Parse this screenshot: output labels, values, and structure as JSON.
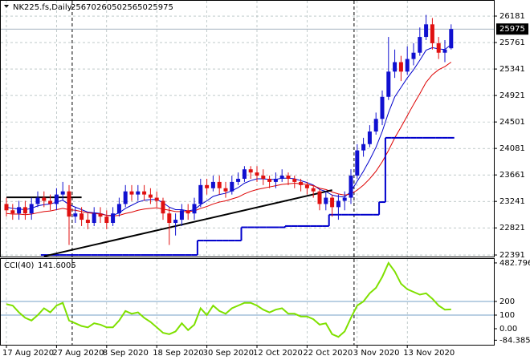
{
  "chart_data": [
    {
      "type": "candlestick",
      "symbol": "NK225.fs,Daily",
      "categories": [
        "17 Aug 2020",
        null,
        null,
        null,
        null,
        null,
        null,
        null,
        "27 Aug 2020",
        null,
        null,
        null,
        null,
        null,
        null,
        null,
        "8 Sep 2020",
        null,
        null,
        null,
        null,
        null,
        null,
        null,
        "18 Sep 2020",
        null,
        null,
        null,
        null,
        null,
        null,
        null,
        "30 Sep 2020",
        null,
        null,
        null,
        null,
        null,
        null,
        null,
        "12 Oct 2020",
        null,
        null,
        null,
        null,
        null,
        null,
        null,
        "22 Oct 2020",
        null,
        null,
        null,
        null,
        null,
        null,
        null,
        "3 Nov 2020",
        null,
        null,
        null,
        null,
        null,
        null,
        null,
        "13 Nov 2020",
        null,
        null,
        null,
        null,
        null,
        null,
        null
      ],
      "open": [
        23200,
        23100,
        23050,
        23150,
        23050,
        23200,
        23300,
        23250,
        23200,
        23350,
        23400,
        23000,
        23050,
        22950,
        22900,
        23050,
        23000,
        22900,
        23050,
        23200,
        23400,
        23350,
        23400,
        23350,
        23300,
        23250,
        23050,
        22900,
        22950,
        23100,
        23050,
        23200,
        23500,
        23450,
        23550,
        23450,
        23400,
        23550,
        23600,
        23750,
        23700,
        23650,
        23600,
        23550,
        23600,
        23650,
        23600,
        23550,
        23500,
        23450,
        23400,
        23200,
        23300,
        23150,
        23250,
        23300,
        23650,
        24050,
        24150,
        24350,
        24550,
        24900,
        25300,
        25450,
        25300,
        25500,
        25600,
        25850,
        26050,
        25750,
        25600,
        25670
      ],
      "high": [
        23300,
        23200,
        23250,
        23250,
        23300,
        23400,
        23400,
        23350,
        23450,
        23550,
        23500,
        23150,
        23150,
        23050,
        23150,
        23150,
        23100,
        23150,
        23300,
        23500,
        23500,
        23500,
        23500,
        23450,
        23400,
        23300,
        23150,
        23050,
        23200,
        23200,
        23300,
        23600,
        23600,
        23650,
        23650,
        23550,
        23650,
        23700,
        23800,
        23800,
        23800,
        23750,
        23650,
        23700,
        23750,
        23700,
        23650,
        23600,
        23550,
        23500,
        23450,
        23400,
        23350,
        23350,
        23400,
        23750,
        24150,
        24250,
        24450,
        24650,
        25000,
        25850,
        25650,
        25550,
        25700,
        25750,
        26000,
        26200,
        26150,
        25850,
        25800,
        26050
      ],
      "low": [
        23000,
        22950,
        22950,
        22950,
        22950,
        23150,
        23150,
        23100,
        23100,
        23250,
        22550,
        22900,
        22850,
        22800,
        22850,
        22900,
        22800,
        22850,
        23000,
        23150,
        23250,
        23250,
        23250,
        23200,
        23150,
        22950,
        22550,
        22700,
        22850,
        22950,
        22950,
        23150,
        23350,
        23400,
        23350,
        23300,
        23350,
        23500,
        23550,
        23600,
        23550,
        23500,
        23450,
        23450,
        23550,
        23500,
        23450,
        23400,
        23350,
        23300,
        23100,
        23100,
        23000,
        22950,
        23100,
        23200,
        23600,
        23950,
        24100,
        24300,
        24450,
        24850,
        25200,
        25150,
        25250,
        25400,
        25550,
        25800,
        25650,
        25500,
        25450,
        25650
      ],
      "close": [
        23100,
        23050,
        23150,
        23050,
        23200,
        23300,
        23250,
        23200,
        23350,
        23400,
        23000,
        23050,
        22950,
        22900,
        23050,
        23000,
        22900,
        23050,
        23200,
        23400,
        23350,
        23400,
        23350,
        23300,
        23250,
        23050,
        22900,
        22950,
        23100,
        23050,
        23200,
        23500,
        23450,
        23550,
        23450,
        23400,
        23550,
        23600,
        23750,
        23700,
        23650,
        23600,
        23550,
        23600,
        23650,
        23600,
        23550,
        23500,
        23450,
        23400,
        23200,
        23300,
        23150,
        23250,
        23300,
        23650,
        24050,
        24150,
        24350,
        24550,
        24900,
        25300,
        25450,
        25300,
        25500,
        25600,
        25850,
        26050,
        25750,
        25600,
        25650,
        25975
      ],
      "up_color": "#1010d0",
      "down_color": "#e01010",
      "series": [
        {
          "color": "#0000cc",
          "values": [
            23150,
            23130,
            23120,
            23110,
            23130,
            23170,
            23190,
            23200,
            23230,
            23260,
            23190,
            23150,
            23110,
            23070,
            23060,
            23050,
            23020,
            23020,
            23060,
            23130,
            23180,
            23230,
            23260,
            23270,
            23270,
            23220,
            23150,
            23110,
            23110,
            23090,
            23110,
            23190,
            23250,
            23320,
            23350,
            23370,
            23410,
            23460,
            23530,
            23570,
            23600,
            23600,
            23590,
            23590,
            23610,
            23610,
            23600,
            23570,
            23540,
            23500,
            23430,
            23400,
            23340,
            23320,
            23310,
            23400,
            23560,
            23720,
            23900,
            24100,
            24350,
            24650,
            24900,
            25050,
            25200,
            25330,
            25480,
            25640,
            25680,
            25660,
            25650,
            25730
          ]
        },
        {
          "color": "#dd0000",
          "values": [
            23050,
            23040,
            23040,
            23030,
            23040,
            23060,
            23080,
            23090,
            23110,
            23130,
            23110,
            23100,
            23080,
            23060,
            23050,
            23040,
            23020,
            23010,
            23020,
            23050,
            23070,
            23100,
            23120,
            23130,
            23140,
            23120,
            23100,
            23080,
            23080,
            23080,
            23090,
            23130,
            23160,
            23200,
            23230,
            23250,
            23280,
            23310,
            23360,
            23400,
            23430,
            23450,
            23470,
            23490,
            23510,
            23520,
            23530,
            23520,
            23510,
            23490,
            23450,
            23430,
            23390,
            23360,
            23340,
            23360,
            23420,
            23500,
            23600,
            23720,
            23870,
            24050,
            24250,
            24420,
            24600,
            24780,
            24950,
            25130,
            25250,
            25330,
            25380,
            25450
          ]
        },
        {
          "color": "#0000cc",
          "step": true,
          "values": [
            null,
            null,
            null,
            null,
            null,
            null,
            22391,
            22391,
            22391,
            22391,
            22391,
            22391,
            22391,
            22391,
            22391,
            22391,
            22391,
            22391,
            22391,
            22391,
            22391,
            22391,
            22391,
            22391,
            22391,
            22391,
            22391,
            22391,
            22391,
            22391,
            22391,
            22620,
            22620,
            22620,
            22620,
            22620,
            22620,
            22620,
            22830,
            22830,
            22830,
            22830,
            22830,
            22830,
            22830,
            22850,
            22850,
            22850,
            22850,
            22850,
            22850,
            22850,
            23030,
            23030,
            23030,
            23030,
            23030,
            23030,
            23030,
            23030,
            23230,
            24250,
            24250,
            24250,
            24250,
            24250,
            24250,
            24250,
            24250,
            24250,
            24250,
            24250
          ]
        }
      ],
      "trend_lines": [
        {
          "color": "#000000",
          "x": [
            6,
            52
          ],
          "y": [
            22370,
            23420
          ]
        },
        {
          "color": "#000000",
          "x": [
            0,
            12
          ],
          "y": [
            23306,
            23306
          ]
        }
      ],
      "period_separators": [
        11,
        56
      ],
      "ylim": [
        22366,
        26385
      ],
      "yticks": [
        22391,
        22821,
        23241,
        23661,
        24081,
        24501,
        24921,
        25341,
        25761,
        26181
      ],
      "grid": true
    },
    {
      "type": "line",
      "title": "CCI(40)",
      "color": "#7fe000",
      "values": [
        180,
        170,
        120,
        80,
        60,
        100,
        150,
        120,
        170,
        190,
        60,
        40,
        20,
        10,
        40,
        30,
        10,
        10,
        60,
        130,
        110,
        120,
        80,
        50,
        10,
        -30,
        -40,
        -20,
        40,
        -10,
        30,
        150,
        100,
        170,
        130,
        110,
        150,
        170,
        190,
        190,
        170,
        140,
        120,
        140,
        150,
        110,
        110,
        90,
        90,
        70,
        30,
        40,
        -40,
        -60,
        -20,
        80,
        170,
        200,
        260,
        300,
        380,
        482.7966,
        420,
        330,
        290,
        270,
        250,
        260,
        220,
        170,
        140,
        141.6005
      ],
      "levels": [
        100,
        200
      ],
      "level_color": "#4682b4",
      "ylim": [
        -117.6,
        511.8
      ],
      "yticks": [
        -84.3857,
        {
          "value": 0,
          "label": "0.00"
        },
        100,
        200,
        482.7966
      ]
    }
  ]
}
